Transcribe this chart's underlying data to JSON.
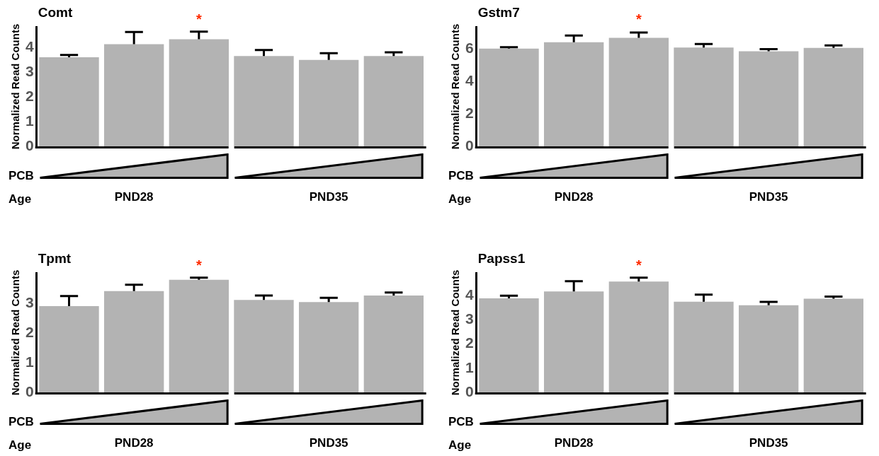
{
  "chart_data": [
    {
      "type": "bar",
      "title": "Comt",
      "ylabel": "Normalized Read Counts",
      "categories": [
        null,
        "PND28",
        null,
        null,
        "PND35",
        null
      ],
      "series": [
        {
          "color": "#b3b3b3",
          "values": [
            3.61,
            4.14,
            4.34,
            3.66,
            3.5,
            3.66
          ],
          "errors": [
            0.09,
            0.49,
            0.31,
            0.24,
            0.27,
            0.15
          ]
        }
      ],
      "ylim": [
        0,
        4.84
      ],
      "yticks": [
        0,
        1,
        2,
        3,
        4
      ],
      "annotations": [
        "*",
        "PCB",
        "Age"
      ]
    },
    {
      "type": "bar",
      "title": "Gstm7",
      "ylabel": "Normalized Read Counts",
      "categories": [
        null,
        "PND28",
        null,
        null,
        "PND35",
        null
      ],
      "series": [
        {
          "color": "#b3b3b3",
          "values": [
            6.03,
            6.42,
            6.69,
            6.09,
            5.87,
            6.07
          ],
          "errors": [
            0.09,
            0.42,
            0.33,
            0.22,
            0.13,
            0.15
          ]
        }
      ],
      "ylim": [
        0,
        7.37
      ],
      "yticks": [
        0,
        2,
        4,
        6
      ],
      "annotations": [
        "*",
        "PCB",
        "Age"
      ]
    },
    {
      "type": "bar",
      "title": "Tpmt",
      "ylabel": "Normalized Read Counts",
      "categories": [
        null,
        "PND28",
        null,
        null,
        "PND35",
        null
      ],
      "series": [
        {
          "color": "#b3b3b3",
          "values": [
            2.9,
            3.41,
            3.79,
            3.11,
            3.04,
            3.26
          ],
          "errors": [
            0.34,
            0.21,
            0.07,
            0.15,
            0.14,
            0.1
          ]
        }
      ],
      "ylim": [
        0,
        4.02
      ],
      "yticks": [
        0,
        1,
        2,
        3
      ],
      "annotations": [
        "*",
        "PCB",
        "Age"
      ]
    },
    {
      "type": "bar",
      "title": "Papss1",
      "ylabel": "Normalized Read Counts",
      "categories": [
        null,
        "PND28",
        null,
        null,
        "PND35",
        null
      ],
      "series": [
        {
          "color": "#b3b3b3",
          "values": [
            3.89,
            4.17,
            4.58,
            3.75,
            3.6,
            3.87
          ],
          "errors": [
            0.11,
            0.43,
            0.16,
            0.29,
            0.14,
            0.09
          ]
        }
      ],
      "ylim": [
        0,
        4.94
      ],
      "yticks": [
        0,
        1,
        2,
        3,
        4
      ],
      "annotations": [
        "*",
        "PCB",
        "Age"
      ]
    }
  ]
}
